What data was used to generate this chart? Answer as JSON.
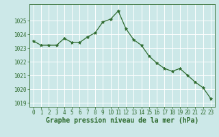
{
  "x": [
    0,
    1,
    2,
    3,
    4,
    5,
    6,
    7,
    8,
    9,
    10,
    11,
    12,
    13,
    14,
    15,
    16,
    17,
    18,
    19,
    20,
    21,
    22,
    23
  ],
  "y": [
    1023.5,
    1023.2,
    1023.2,
    1023.2,
    1023.7,
    1023.4,
    1023.4,
    1023.8,
    1024.1,
    1024.9,
    1025.1,
    1025.7,
    1024.4,
    1023.6,
    1023.2,
    1022.4,
    1021.9,
    1021.5,
    1021.3,
    1021.5,
    1021.0,
    1020.5,
    1020.1,
    1019.3
  ],
  "line_color": "#2d6a2d",
  "marker": "*",
  "marker_size": 3.5,
  "bg_color": "#cce8e8",
  "grid_color": "#ffffff",
  "ylim": [
    1018.7,
    1026.2
  ],
  "yticks": [
    1019,
    1020,
    1021,
    1022,
    1023,
    1024,
    1025
  ],
  "xlim": [
    -0.5,
    23.5
  ],
  "xlabel": "Graphe pression niveau de la mer (hPa)",
  "xlabel_color": "#2d6a2d",
  "tick_color": "#2d6a2d",
  "tick_fontsize": 5.5,
  "xlabel_fontsize": 7.0
}
